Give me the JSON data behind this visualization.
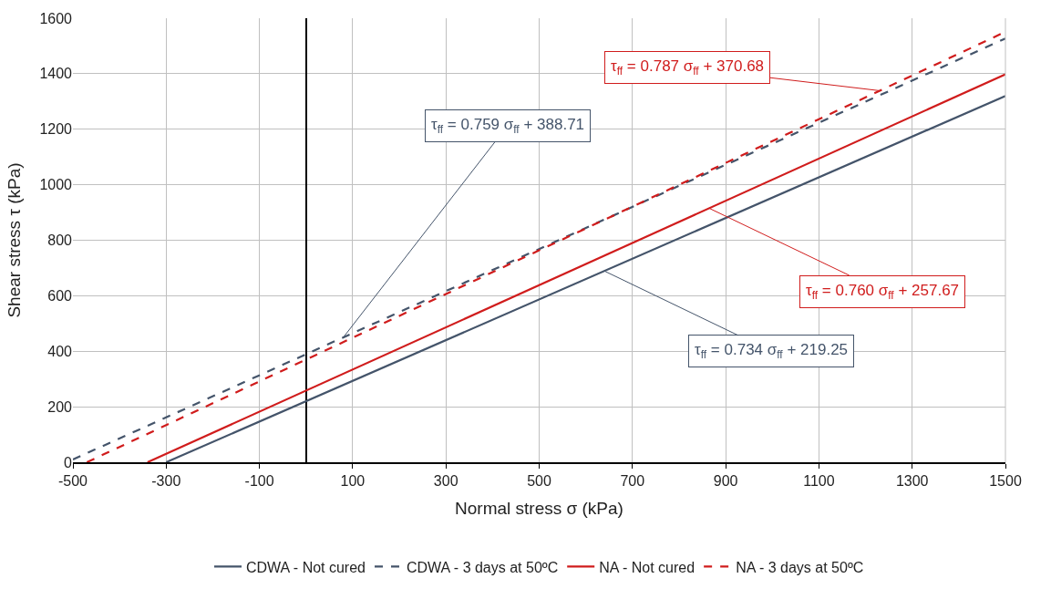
{
  "chart_data": {
    "type": "line",
    "xlabel": "Normal stress σ (kPa)",
    "ylabel": "Shear stress τ (kPa)",
    "series": [
      {
        "name": "CDWA - Not cured",
        "color": "#44546a",
        "line_style": "solid",
        "x": [
          -300,
          1500
        ],
        "values": [
          0,
          1320
        ]
      },
      {
        "name": "CDWA - 3 days at 50ºC",
        "color": "#44546a",
        "line_style": "dashed",
        "x": [
          -500,
          1500
        ],
        "values": [
          10,
          1527
        ]
      },
      {
        "name": "NA - Not cured",
        "color": "#d01c1c",
        "line_style": "solid",
        "x": [
          -340,
          1500
        ],
        "values": [
          0,
          1398
        ]
      },
      {
        "name": "NA - 3 days at 50ºC",
        "color": "#d01c1c",
        "line_style": "dashed",
        "x": [
          -470,
          1500
        ],
        "values": [
          0,
          1551
        ]
      }
    ],
    "annotations": [
      {
        "text": "τ$_{ff}$ = 0.734 σ$_{ff}$ + 219.25",
        "x": 640,
        "y": 689
      },
      {
        "text": "τ$_{ff}$ = 0.759 σ$_{ff}$ + 388.71",
        "x": 80,
        "y": 450
      },
      {
        "text": "τ$_{ff}$ = 0.760 σ$_{ff}$ + 257.67",
        "x": 865,
        "y": 915
      },
      {
        "text": "τ$_{ff}$ = 0.787 σ$_{ff}$ + 370.68",
        "x": 1230,
        "y": 1339
      }
    ],
    "xlim": [
      -500,
      1500
    ],
    "xticks": [
      -500,
      -300,
      -100,
      100,
      300,
      500,
      700,
      900,
      1100,
      1300,
      1500
    ],
    "ylim": [
      0,
      1600
    ],
    "yticks": [
      0,
      200,
      400,
      600,
      800,
      1000,
      1200,
      1400,
      1600
    ],
    "grid": true,
    "legend": "bottom",
    "marker": "none"
  }
}
